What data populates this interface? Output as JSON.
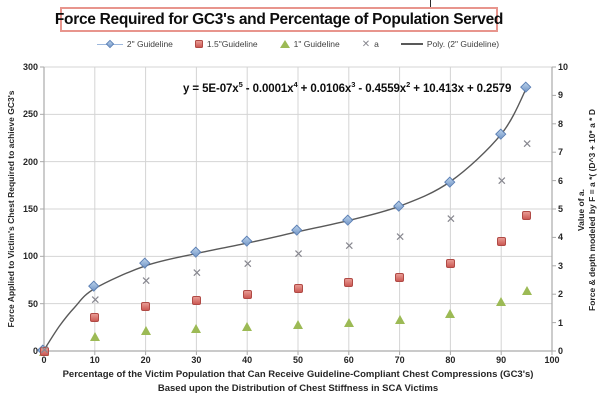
{
  "chart_data": {
    "type": "scatter",
    "title": "Force Required for GC3's and Percentage of Population Served",
    "x_axis": {
      "title_line1": "Percentage of the Victim Population that Can Receive Guideline-Compliant Chest Compressions (GC3's)",
      "title_line2": "Based upon the Distribution of Chest Stiffness in SCA Victims",
      "range": [
        0,
        100
      ],
      "ticks": [
        0,
        10,
        20,
        30,
        40,
        50,
        60,
        70,
        80,
        90,
        100
      ]
    },
    "y_left_axis": {
      "title": "Force Applied to Victim's Chest Required to achieve GC3's",
      "range": [
        0,
        300
      ],
      "ticks": [
        0,
        50,
        100,
        150,
        200,
        250,
        300
      ]
    },
    "y_right_axis": {
      "title_line1": "Value of a.",
      "title_line2": "Force & depth modeled by F = a *( (D^3 + 10* a * D",
      "range": [
        0,
        10
      ],
      "ticks": [
        0,
        1,
        2,
        3,
        4,
        5,
        6,
        7,
        8,
        9,
        10
      ]
    },
    "x": [
      0,
      10,
      20,
      30,
      40,
      50,
      60,
      70,
      80,
      90,
      95
    ],
    "series": [
      {
        "name": "2\" Guideline",
        "axis": "left",
        "marker": "diamond",
        "values": [
          0,
          68,
          92,
          104,
          115,
          127,
          138,
          152,
          178,
          228,
          278
        ]
      },
      {
        "name": "1.5\"Guideline",
        "axis": "left",
        "marker": "square",
        "values": [
          0,
          35,
          47,
          53,
          60,
          66,
          72,
          78,
          92,
          116,
          143
        ]
      },
      {
        "name": "1\" Guideline",
        "axis": "left",
        "marker": "triangle",
        "values": [
          0,
          15,
          22,
          24,
          26,
          28,
          30,
          33,
          40,
          52,
          64
        ]
      },
      {
        "name": "a",
        "axis": "right",
        "marker": "x",
        "values": [
          0.05,
          1.8,
          2.45,
          2.75,
          3.05,
          3.4,
          3.7,
          4.0,
          4.65,
          6.0,
          7.3
        ]
      }
    ],
    "trendline": {
      "name": "Poly. (2\" Guideline)",
      "axis": "left",
      "x": [
        0,
        3,
        6,
        10,
        20,
        30,
        40,
        50,
        60,
        70,
        80,
        90,
        95
      ],
      "values": [
        1,
        26,
        46,
        66,
        90,
        103,
        114,
        126,
        138,
        153,
        179,
        229,
        278
      ]
    },
    "equation_segments": [
      {
        "t": "y = 5E-07x"
      },
      {
        "t": "5",
        "sup": true
      },
      {
        "t": " - 0.0001x"
      },
      {
        "t": "4",
        "sup": true
      },
      {
        "t": " + 0.0106x"
      },
      {
        "t": "3",
        "sup": true
      },
      {
        "t": " - 0.4559x"
      },
      {
        "t": "2",
        "sup": true
      },
      {
        "t": " + 10.413x + 0.2579"
      }
    ],
    "layout": {
      "grid": true,
      "legend_position": "top"
    },
    "colors": {
      "diamond_fill": "#8fb1de",
      "diamond_border": "#5a7fb5",
      "square_fill": "#d86a64",
      "square_border": "#b04a45",
      "triangle_fill": "#9cba55",
      "x_marker": "#87878f",
      "trendline": "#595959",
      "gridline": "#d4d4d4",
      "axis_line": "#aaaaaa",
      "title_box_border": "#e8958d"
    }
  }
}
